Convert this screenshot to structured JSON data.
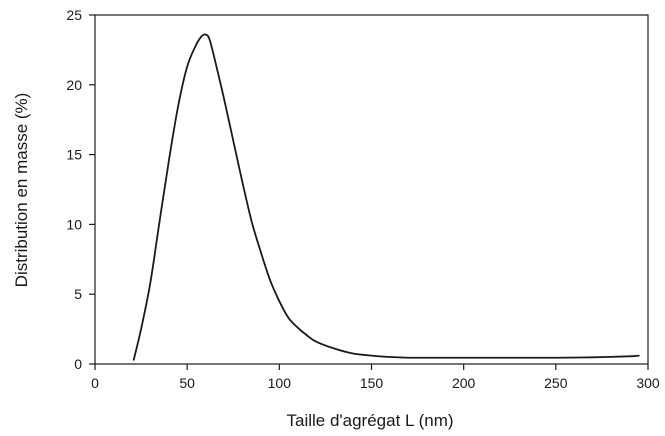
{
  "chart_data": {
    "type": "line",
    "title": "",
    "xlabel": "Taille d'agrégat L (nm)",
    "ylabel": "Distribution en masse (%)",
    "xlim": [
      0,
      300
    ],
    "ylim": [
      0,
      25
    ],
    "x_ticks": [
      0,
      50,
      100,
      150,
      200,
      250,
      300
    ],
    "y_ticks": [
      0,
      5,
      10,
      15,
      20,
      25
    ],
    "grid": false,
    "legend": "none",
    "colors": {
      "line": "#1a1a1a",
      "axis": "#1a1a1a"
    },
    "series": [
      {
        "x": [
          21,
          25,
          30,
          35,
          40,
          45,
          50,
          55,
          58,
          60,
          62,
          65,
          70,
          75,
          80,
          85,
          90,
          95,
          100,
          105,
          110,
          115,
          120,
          130,
          140,
          150,
          160,
          170,
          180,
          200,
          220,
          250,
          270,
          290,
          295
        ],
        "y": [
          0.3,
          2.5,
          5.8,
          10.2,
          14.5,
          18.4,
          21.3,
          22.9,
          23.5,
          23.6,
          23.3,
          21.8,
          19.0,
          16.0,
          13.0,
          10.2,
          8.0,
          6.0,
          4.5,
          3.3,
          2.6,
          2.05,
          1.6,
          1.1,
          0.75,
          0.6,
          0.5,
          0.45,
          0.45,
          0.45,
          0.45,
          0.45,
          0.48,
          0.55,
          0.6
        ]
      }
    ]
  }
}
